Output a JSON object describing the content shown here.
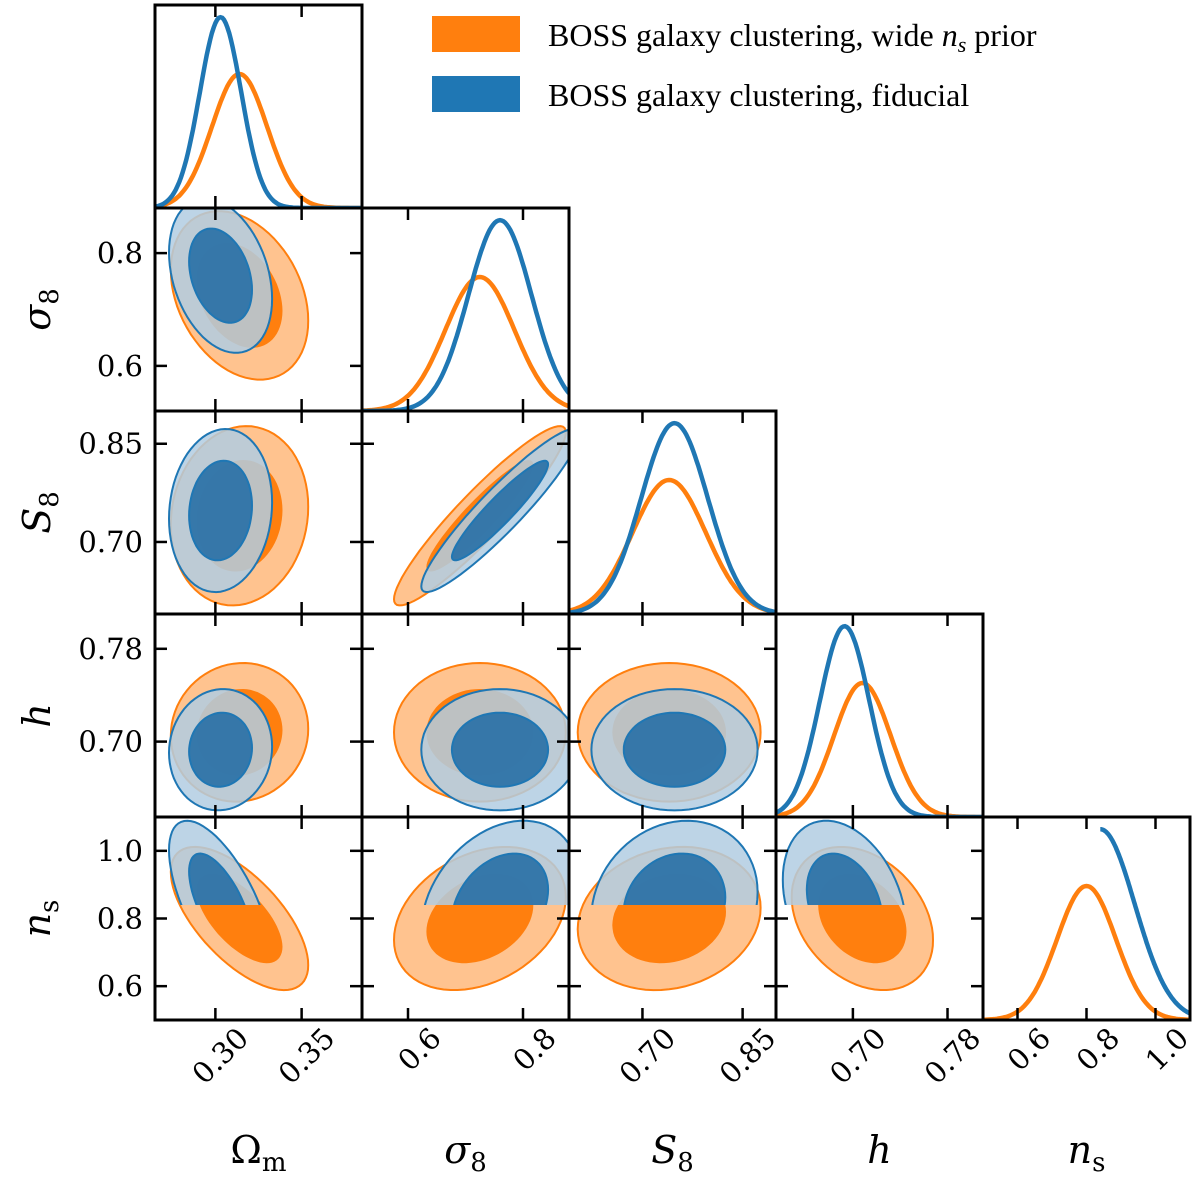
{
  "chart_data": {
    "type": "corner",
    "parameters": [
      {
        "key": "om",
        "label_main": "Ω",
        "label_sub": "m",
        "range": [
          0.265,
          0.385
        ],
        "ticks": [
          {
            "v": 0.3,
            "t": "0.30"
          },
          {
            "v": 0.35,
            "t": "0.35"
          }
        ]
      },
      {
        "key": "s8",
        "label_main": "σ",
        "label_sub": "8",
        "range": [
          0.52,
          0.88
        ],
        "ticks": [
          {
            "v": 0.6,
            "t": "0.6"
          },
          {
            "v": 0.8,
            "t": "0.8"
          }
        ]
      },
      {
        "key": "S8",
        "label_main": "S",
        "label_sub": "8",
        "range": [
          0.59,
          0.9
        ],
        "ticks": [
          {
            "v": 0.7,
            "t": "0.70"
          },
          {
            "v": 0.85,
            "t": "0.85"
          }
        ]
      },
      {
        "key": "h",
        "label_main": "h",
        "label_sub": "",
        "range": [
          0.635,
          0.81
        ],
        "ticks": [
          {
            "v": 0.7,
            "t": "0.70"
          },
          {
            "v": 0.78,
            "t": "0.78"
          }
        ]
      },
      {
        "key": "ns",
        "label_main": "n",
        "label_sub": "s",
        "range": [
          0.5,
          1.1
        ],
        "ticks": [
          {
            "v": 0.6,
            "t": "0.6"
          },
          {
            "v": 0.8,
            "t": "0.8"
          },
          {
            "v": 1.0,
            "t": "1.0"
          }
        ]
      }
    ],
    "y_tick_overrides": {
      "s8": [
        {
          "v": 0.6,
          "t": "0.6"
        },
        {
          "v": 0.8,
          "t": "0.8"
        }
      ],
      "S8": [
        {
          "v": 0.7,
          "t": "0.70"
        },
        {
          "v": 0.85,
          "t": "0.85"
        }
      ],
      "h": [
        {
          "v": 0.7,
          "t": "0.70"
        },
        {
          "v": 0.78,
          "t": "0.78"
        }
      ],
      "ns": [
        {
          "v": 0.6,
          "t": "0.6"
        },
        {
          "v": 0.8,
          "t": "0.8"
        },
        {
          "v": 1.0,
          "t": "1.0"
        }
      ]
    },
    "series": [
      {
        "name": "BOSS galaxy clustering, wide n_s prior",
        "legend_prefix": "BOSS galaxy clustering, wide ",
        "legend_italic": "n",
        "legend_sub": "s",
        "legend_suffix": " prior",
        "color": "#ff7f0e",
        "fill_outer": "#ffc38f",
        "fill_inner": "#ff7f0e",
        "means": {
          "om": 0.314,
          "s8": 0.725,
          "S8": 0.74,
          "h": 0.708,
          "ns": 0.8
        },
        "sigmas": {
          "om": 0.016,
          "s8": 0.06,
          "S8": 0.055,
          "h": 0.024,
          "ns": 0.085
        },
        "correlations": {
          "om_s8": -0.3,
          "om_S8": 0.1,
          "om_h": 0.05,
          "om_ns": -0.65,
          "s8_S8": 0.93,
          "s8_h": 0.0,
          "S8_h": 0.0,
          "s8_ns": 0.3,
          "S8_ns": 0.15,
          "h_ns": -0.3
        }
      },
      {
        "name": "BOSS galaxy clustering, fiducial",
        "legend_prefix": "BOSS galaxy clustering, fiducial",
        "legend_italic": "",
        "legend_sub": "",
        "legend_suffix": "",
        "color": "#1f77b4",
        "fill_outer": "#b1cce2",
        "fill_inner": "#2e73a8",
        "means": {
          "om": 0.303,
          "s8": 0.76,
          "S8": 0.748,
          "h": 0.693,
          "ns": 0.84
        },
        "sigmas": {
          "om": 0.012,
          "s8": 0.055,
          "S8": 0.05,
          "h": 0.021,
          "ns": 0.1
        },
        "correlations": {
          "om_s8": -0.3,
          "om_S8": 0.1,
          "om_h": 0.05,
          "om_ns": -0.65,
          "s8_S8": 0.93,
          "s8_h": 0.0,
          "S8_h": 0.0,
          "s8_ns": 0.3,
          "S8_ns": 0.15,
          "h_ns": -0.3
        },
        "ns_prior_min": 0.84
      }
    ],
    "legend_position": "top-right"
  }
}
